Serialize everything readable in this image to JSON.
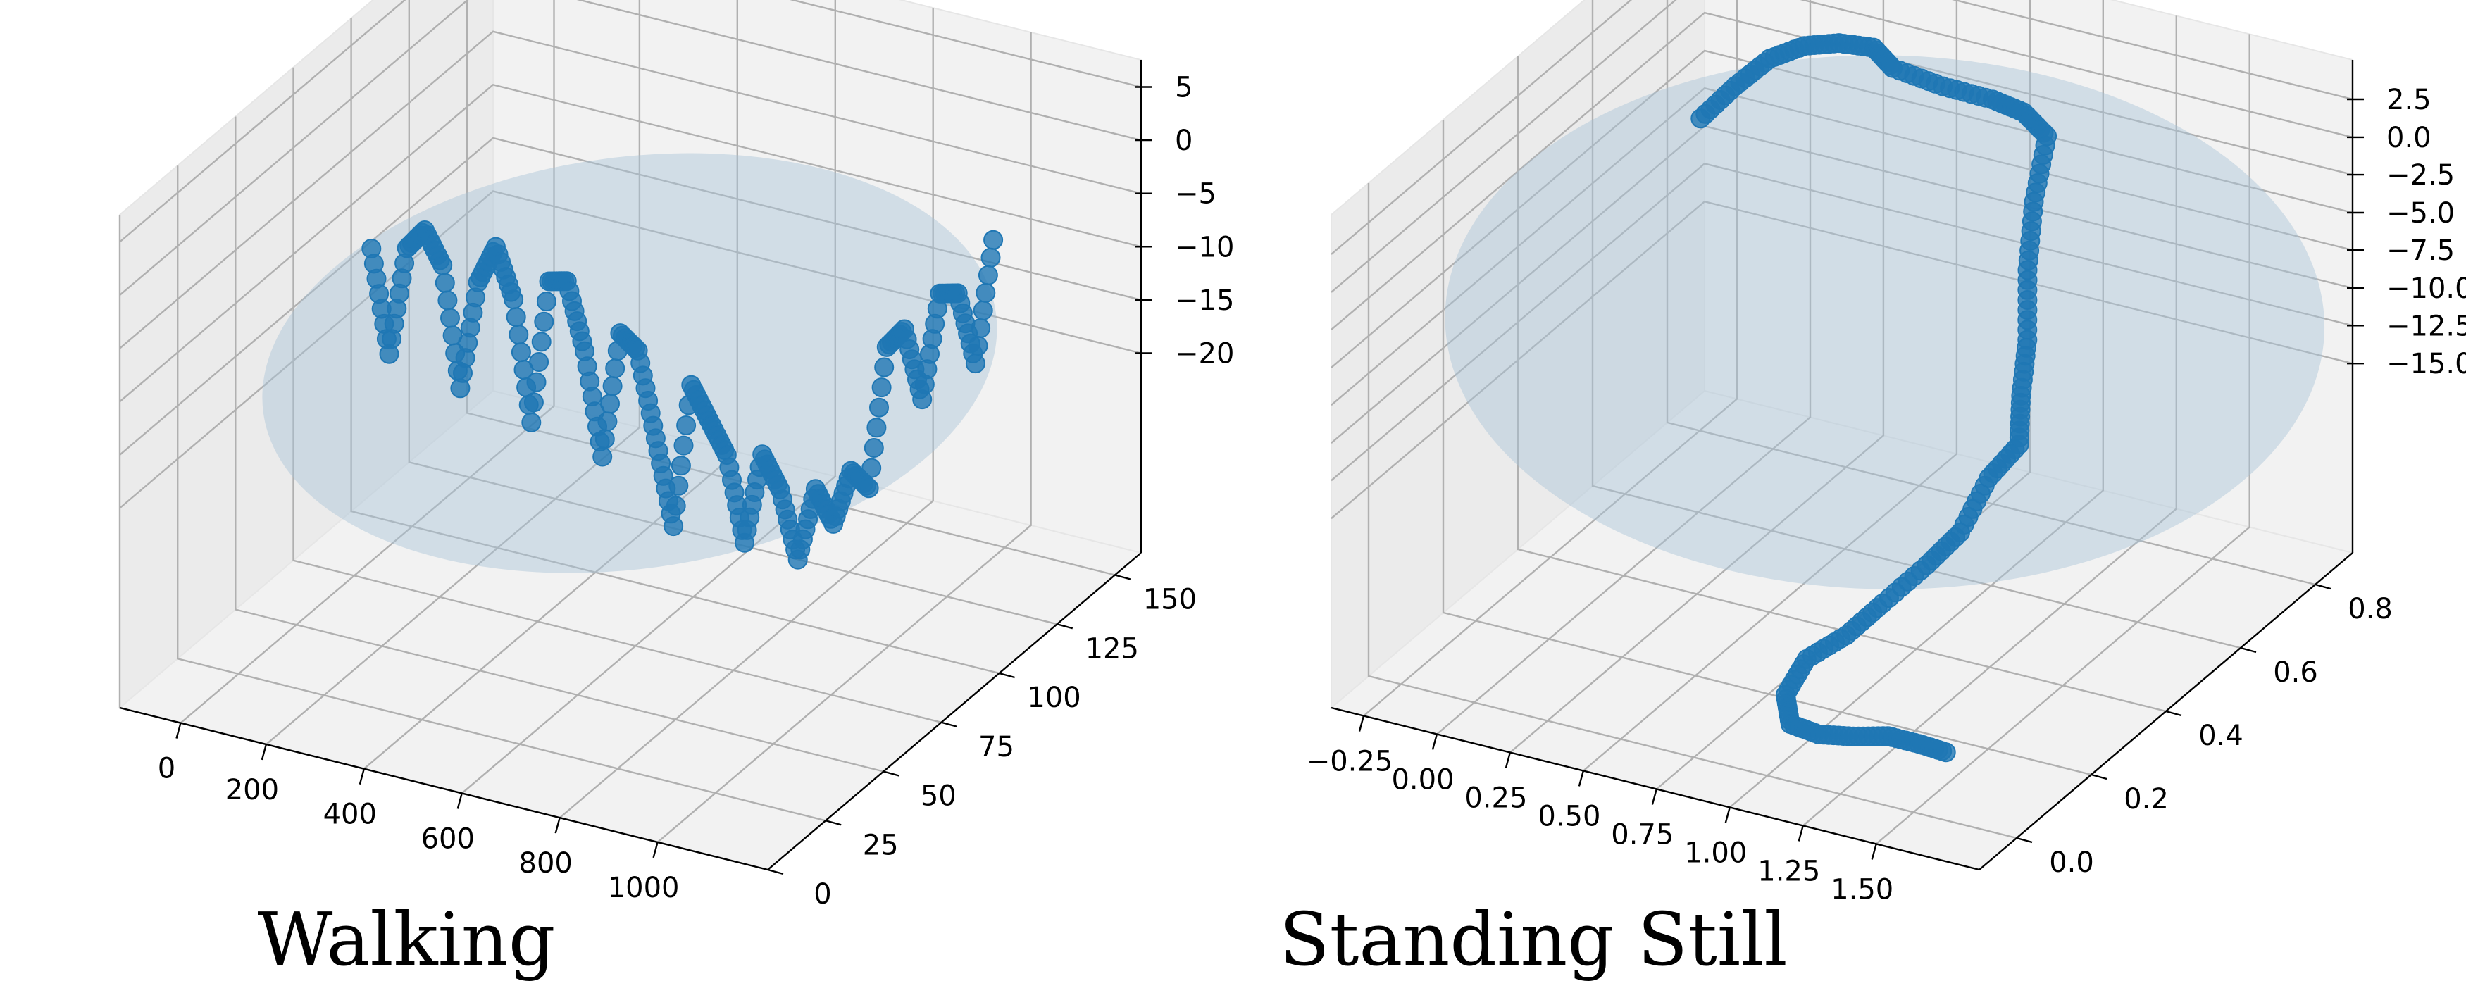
{
  "chart_data": [
    {
      "type": "scatter3d",
      "caption": "Walking",
      "x_ticks": [
        "0",
        "200",
        "400",
        "600",
        "800",
        "1000"
      ],
      "y_ticks": [
        "0",
        "25",
        "50",
        "75",
        "100",
        "125",
        "150"
      ],
      "z_ticks": [
        "5",
        "0",
        "−5",
        "−10",
        "−15",
        "−20"
      ],
      "xlim": [
        -100,
        1100
      ],
      "ylim": [
        -10,
        165
      ],
      "zlim": [
        -22,
        6
      ],
      "grid": true,
      "marker_color": "#1f77b4",
      "ellipsoid_color": "#a9c3d8",
      "points": [
        [
          50,
          70,
          -3
        ],
        [
          75,
          72,
          -9
        ],
        [
          100,
          74,
          -3
        ],
        [
          125,
          76,
          -2
        ],
        [
          150,
          78,
          -4
        ],
        [
          175,
          80,
          -11
        ],
        [
          200,
          82,
          -5
        ],
        [
          225,
          84,
          -3
        ],
        [
          250,
          86,
          -6
        ],
        [
          275,
          88,
          -13
        ],
        [
          300,
          90,
          -5
        ],
        [
          325,
          92,
          -5
        ],
        [
          350,
          94,
          -9
        ],
        [
          375,
          96,
          -15
        ],
        [
          400,
          98,
          -8
        ],
        [
          425,
          100,
          -9
        ],
        [
          450,
          102,
          -14
        ],
        [
          475,
          104,
          -19
        ],
        [
          500,
          106,
          -11
        ],
        [
          525,
          108,
          -13
        ],
        [
          550,
          110,
          -15
        ],
        [
          575,
          112,
          -20
        ],
        [
          600,
          114,
          -15
        ],
        [
          625,
          116,
          -17
        ],
        [
          650,
          118,
          -21
        ],
        [
          675,
          120,
          -17
        ],
        [
          700,
          122,
          -19
        ],
        [
          725,
          124,
          -16
        ],
        [
          750,
          126,
          -17
        ],
        [
          775,
          128,
          -9
        ],
        [
          800,
          130,
          -8
        ],
        [
          825,
          132,
          -12
        ],
        [
          850,
          134,
          -6
        ],
        [
          875,
          136,
          -6
        ],
        [
          900,
          138,
          -10
        ],
        [
          925,
          140,
          -3
        ]
      ]
    },
    {
      "type": "scatter3d",
      "caption": "Standing Still",
      "x_ticks": [
        "−0.25",
        "0.00",
        "0.25",
        "0.50",
        "0.75",
        "1.00",
        "1.25",
        "1.50"
      ],
      "y_ticks": [
        "0.0",
        "0.2",
        "0.4",
        "0.6",
        "0.8"
      ],
      "z_ticks": [
        "2.5",
        "0.0",
        "−2.5",
        "−5.0",
        "−7.5",
        "−10.0",
        "−12.5",
        "−15.0"
      ],
      "xlim": [
        -0.35,
        1.75
      ],
      "ylim": [
        -0.1,
        0.9
      ],
      "zlim": [
        -16,
        4
      ],
      "grid": true,
      "marker_color": "#1f77b4",
      "ellipsoid_color": "#a9c3d8",
      "points": [
        [
          0.0,
          0.6,
          0.0
        ],
        [
          0.1,
          0.61,
          1.5
        ],
        [
          0.2,
          0.62,
          2.8
        ],
        [
          0.3,
          0.63,
          3.5
        ],
        [
          0.4,
          0.64,
          3.8
        ],
        [
          0.5,
          0.65,
          3.8
        ],
        [
          0.55,
          0.66,
          3.0
        ],
        [
          0.7,
          0.67,
          2.6
        ],
        [
          0.85,
          0.68,
          2.4
        ],
        [
          0.95,
          0.68,
          2.2
        ],
        [
          1.05,
          0.66,
          1.8
        ],
        [
          1.08,
          0.6,
          0.0
        ],
        [
          1.12,
          0.55,
          -2.0
        ],
        [
          1.18,
          0.5,
          -4.0
        ],
        [
          1.22,
          0.45,
          -5.5
        ],
        [
          1.25,
          0.42,
          -7.0
        ],
        [
          1.2,
          0.38,
          -8.0
        ],
        [
          1.18,
          0.32,
          -9.5
        ],
        [
          1.12,
          0.28,
          -10.5
        ],
        [
          1.05,
          0.22,
          -11.5
        ],
        [
          0.98,
          0.18,
          -12.5
        ],
        [
          0.9,
          0.14,
          -13.2
        ],
        [
          0.88,
          0.1,
          -14.2
        ],
        [
          0.92,
          0.08,
          -15.0
        ],
        [
          1.0,
          0.09,
          -15.3
        ],
        [
          1.1,
          0.1,
          -15.2
        ],
        [
          1.2,
          0.11,
          -15.0
        ],
        [
          1.3,
          0.11,
          -15.0
        ],
        [
          1.4,
          0.1,
          -14.9
        ]
      ]
    }
  ]
}
